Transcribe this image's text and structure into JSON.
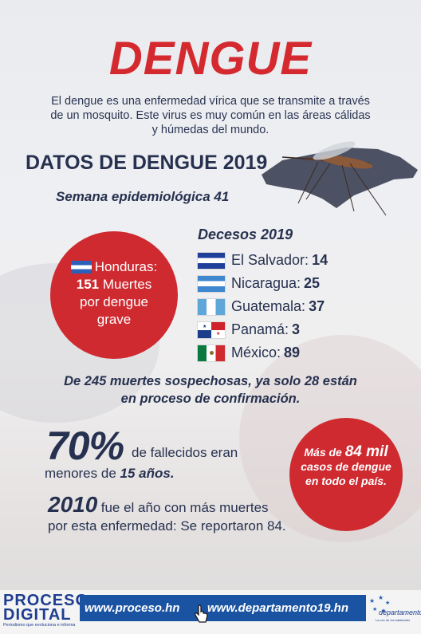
{
  "title": "DENGUE",
  "intro": "El dengue es una enfermedad vírica que se transmite a través de un mosquito. Este virus es muy común en las áreas cálidas y húmedas del mundo.",
  "datos_heading": "DATOS DE DENGUE 2019",
  "semana": "Semana epidemiológica 41",
  "honduras": {
    "label": "Honduras:",
    "count": "151",
    "count_suffix": "Muertes",
    "line3": "por dengue",
    "line4": "grave"
  },
  "decesos_title": "Decesos 2019",
  "deaths": [
    {
      "country": "El Salvador:",
      "value": "14"
    },
    {
      "country": "Nicaragua:",
      "value": "25"
    },
    {
      "country": "Guatemala:",
      "value": "37"
    },
    {
      "country": "Panamá:",
      "value": "3"
    },
    {
      "country": "México:",
      "value": "89"
    }
  ],
  "note": {
    "line1": "De 245 muertes sospechosas, ya solo 28 están",
    "line2": "en proceso de confirmación."
  },
  "stat_pct": {
    "value": "70%",
    "text": "de fallecidos eran",
    "line2": "menores de",
    "line2_bold": "15 años."
  },
  "stat_year": {
    "value": "2010",
    "text": "fue el año con más muertes",
    "line2": "por esta enfermedad: Se reportaron 84."
  },
  "cases": {
    "prefix": "Más de",
    "number": "84 mil",
    "line2": "casos de dengue",
    "line3": "en todo el país."
  },
  "footer": {
    "logo_line1": "PROCESO",
    "logo_line2": "DIGITAL",
    "logo_tagline": "Periodismo que evoluciona e informa",
    "url1": "www.proceso.hn",
    "url2": "www.departamento19.hn",
    "logo2_name": "departamento",
    "logo2_tagline": "La voz de los habitantes"
  },
  "colors": {
    "accent_red": "#d42a2f",
    "text_navy": "#26314f",
    "footer_blue": "#1b53a3"
  }
}
